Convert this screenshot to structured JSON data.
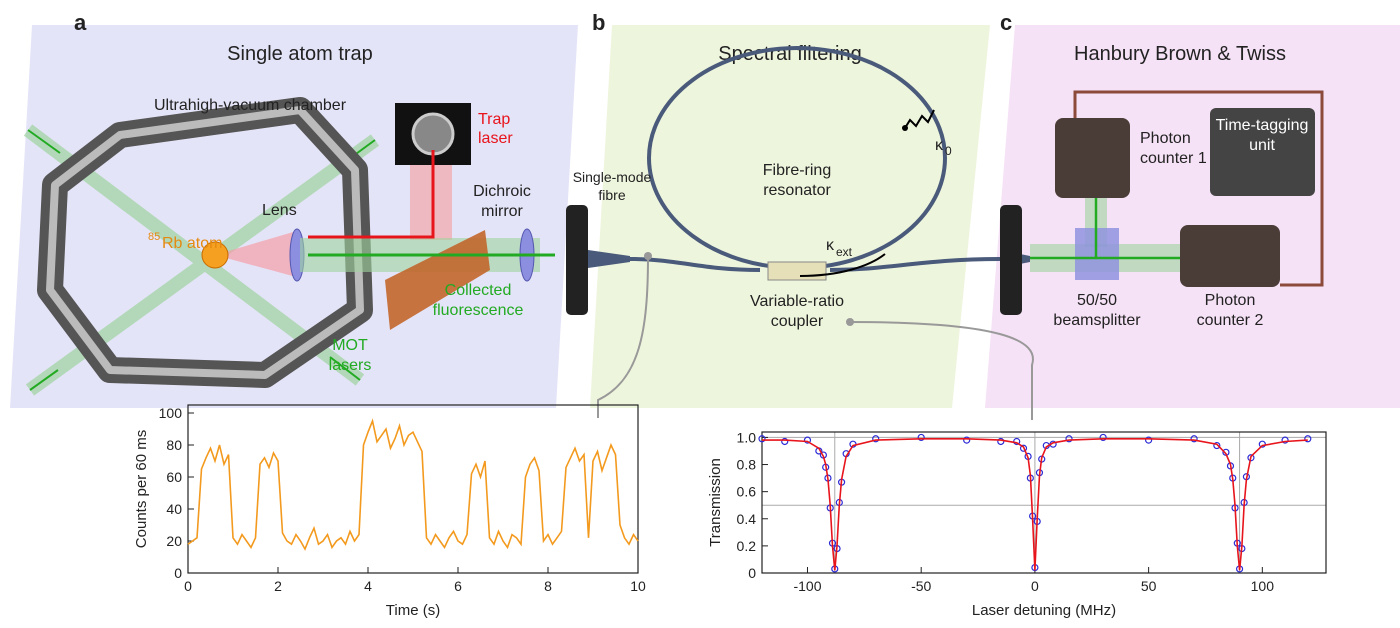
{
  "diagram": {
    "panels": [
      {
        "label": "a",
        "title": "Single atom trap"
      },
      {
        "label": "b",
        "title": "Spectral filtering"
      },
      {
        "label": "c",
        "title": "Hanbury Brown & Twiss"
      }
    ],
    "labels": {
      "chamber": "Ultrahigh-vacuum chamber",
      "trap_laser": [
        "Trap",
        "laser"
      ],
      "dichroic": [
        "Dichroic",
        "mirror"
      ],
      "lens": "Lens",
      "atom": {
        "mass": "85",
        "name": "Rb atom"
      },
      "fluorescence": [
        "Collected",
        "fluorescence"
      ],
      "mot": [
        "MOT",
        "lasers"
      ],
      "fibre": [
        "Single-mode",
        "fibre"
      ],
      "resonator": [
        "Fibre-ring",
        "resonator"
      ],
      "kappa0": {
        "symbol": "κ",
        "sub": "0"
      },
      "kappa_ext": {
        "symbol": "κ",
        "sub": "ext"
      },
      "coupler": [
        "Variable-ratio",
        "coupler"
      ],
      "counter1": [
        "Photon",
        "counter 1"
      ],
      "tagger": [
        "Time-tagging",
        "unit"
      ],
      "beamsplitter": [
        "50/50",
        "beamsplitter"
      ],
      "counter2": [
        "Photon",
        "counter 2"
      ]
    }
  },
  "chart_data": [
    {
      "type": "line",
      "xlabel": "Time (s)",
      "ylabel": "Counts per 60 ms",
      "xlim": [
        0,
        10
      ],
      "ylim": [
        0,
        105
      ],
      "xticks": [
        0,
        2,
        4,
        6,
        8,
        10
      ],
      "yticks": [
        0,
        20,
        40,
        60,
        80,
        100
      ],
      "x": [
        0,
        0.1,
        0.2,
        0.3,
        0.4,
        0.5,
        0.6,
        0.7,
        0.8,
        0.9,
        1,
        1.1,
        1.2,
        1.3,
        1.4,
        1.5,
        1.6,
        1.7,
        1.8,
        1.9,
        2,
        2.1,
        2.2,
        2.3,
        2.4,
        2.5,
        2.6,
        2.7,
        2.8,
        2.9,
        3,
        3.1,
        3.2,
        3.3,
        3.4,
        3.5,
        3.6,
        3.7,
        3.8,
        3.9,
        4,
        4.1,
        4.2,
        4.3,
        4.4,
        4.5,
        4.6,
        4.7,
        4.8,
        4.9,
        5,
        5.1,
        5.2,
        5.3,
        5.4,
        5.5,
        5.6,
        5.7,
        5.8,
        5.9,
        6,
        6.1,
        6.2,
        6.3,
        6.4,
        6.5,
        6.6,
        6.7,
        6.8,
        6.9,
        7,
        7.1,
        7.2,
        7.3,
        7.4,
        7.5,
        7.6,
        7.7,
        7.8,
        7.9,
        8,
        8.1,
        8.2,
        8.3,
        8.4,
        8.5,
        8.6,
        8.7,
        8.8,
        8.9,
        9,
        9.1,
        9.2,
        9.3,
        9.4,
        9.5,
        9.6,
        9.7,
        9.8,
        9.9,
        10
      ],
      "series": [
        {
          "color": "#f39a1e",
          "style": "line",
          "values": [
            18,
            20,
            22,
            65,
            72,
            78,
            70,
            80,
            68,
            74,
            22,
            18,
            24,
            20,
            16,
            22,
            68,
            72,
            66,
            75,
            70,
            25,
            20,
            18,
            24,
            20,
            15,
            22,
            28,
            18,
            20,
            24,
            16,
            20,
            22,
            18,
            26,
            20,
            24,
            80,
            88,
            95,
            82,
            86,
            90,
            78,
            84,
            92,
            80,
            86,
            88,
            82,
            76,
            22,
            18,
            24,
            20,
            16,
            22,
            26,
            20,
            18,
            24,
            62,
            68,
            60,
            70,
            22,
            18,
            26,
            20,
            16,
            24,
            22,
            18,
            60,
            68,
            72,
            64,
            20,
            24,
            18,
            22,
            26,
            66,
            72,
            78,
            70,
            74,
            22,
            70,
            76,
            64,
            72,
            80,
            74,
            30,
            22,
            18,
            24,
            20
          ]
        }
      ]
    },
    {
      "type": "line",
      "xlabel": "Laser detuning (MHz)",
      "ylabel": "Transmission",
      "xlim": [
        -120,
        128
      ],
      "ylim": [
        0,
        1.04
      ],
      "xticks": [
        -100,
        -50,
        0,
        50,
        100
      ],
      "yticks": [
        0,
        0.2,
        0.4,
        0.6,
        0.8,
        {
          "value": 1,
          "label": "1.0"
        }
      ],
      "xlines": [
        -88,
        0,
        90
      ],
      "ylines": [
        0.5,
        1
      ],
      "x": [
        -120,
        -110,
        -100,
        -95,
        -93,
        -92,
        -91,
        -90,
        -89,
        -88,
        -87,
        -86,
        -85,
        -83,
        -80,
        -70,
        -50,
        -30,
        -15,
        -8,
        -5,
        -3,
        -2,
        -1,
        0,
        1,
        2,
        3,
        5,
        8,
        15,
        30,
        50,
        70,
        80,
        84,
        86,
        87,
        88,
        89,
        90,
        91,
        92,
        93,
        95,
        100,
        110,
        120
      ],
      "series": [
        {
          "color": "#2b2bd6",
          "style": "markers",
          "values": [
            0.99,
            0.97,
            0.98,
            0.9,
            0.87,
            0.78,
            0.7,
            0.48,
            0.22,
            0.03,
            0.18,
            0.52,
            0.67,
            0.88,
            0.95,
            0.99,
            1.0,
            0.98,
            0.97,
            0.97,
            0.92,
            0.86,
            0.7,
            0.42,
            0.04,
            0.38,
            0.74,
            0.84,
            0.94,
            0.95,
            0.99,
            1.0,
            0.98,
            0.99,
            0.94,
            0.89,
            0.79,
            0.7,
            0.48,
            0.22,
            0.03,
            0.18,
            0.52,
            0.71,
            0.85,
            0.95,
            0.98,
            0.99
          ]
        },
        {
          "color": "#e8141c",
          "style": "line",
          "values": [
            0.98,
            0.98,
            0.97,
            0.92,
            0.86,
            0.8,
            0.69,
            0.5,
            0.2,
            0.02,
            0.2,
            0.5,
            0.69,
            0.86,
            0.94,
            0.98,
            0.99,
            0.99,
            0.98,
            0.96,
            0.93,
            0.85,
            0.72,
            0.4,
            0.02,
            0.4,
            0.72,
            0.85,
            0.93,
            0.96,
            0.98,
            0.99,
            0.99,
            0.98,
            0.95,
            0.88,
            0.8,
            0.69,
            0.5,
            0.2,
            0.02,
            0.2,
            0.5,
            0.69,
            0.86,
            0.94,
            0.97,
            0.98
          ]
        }
      ]
    }
  ]
}
